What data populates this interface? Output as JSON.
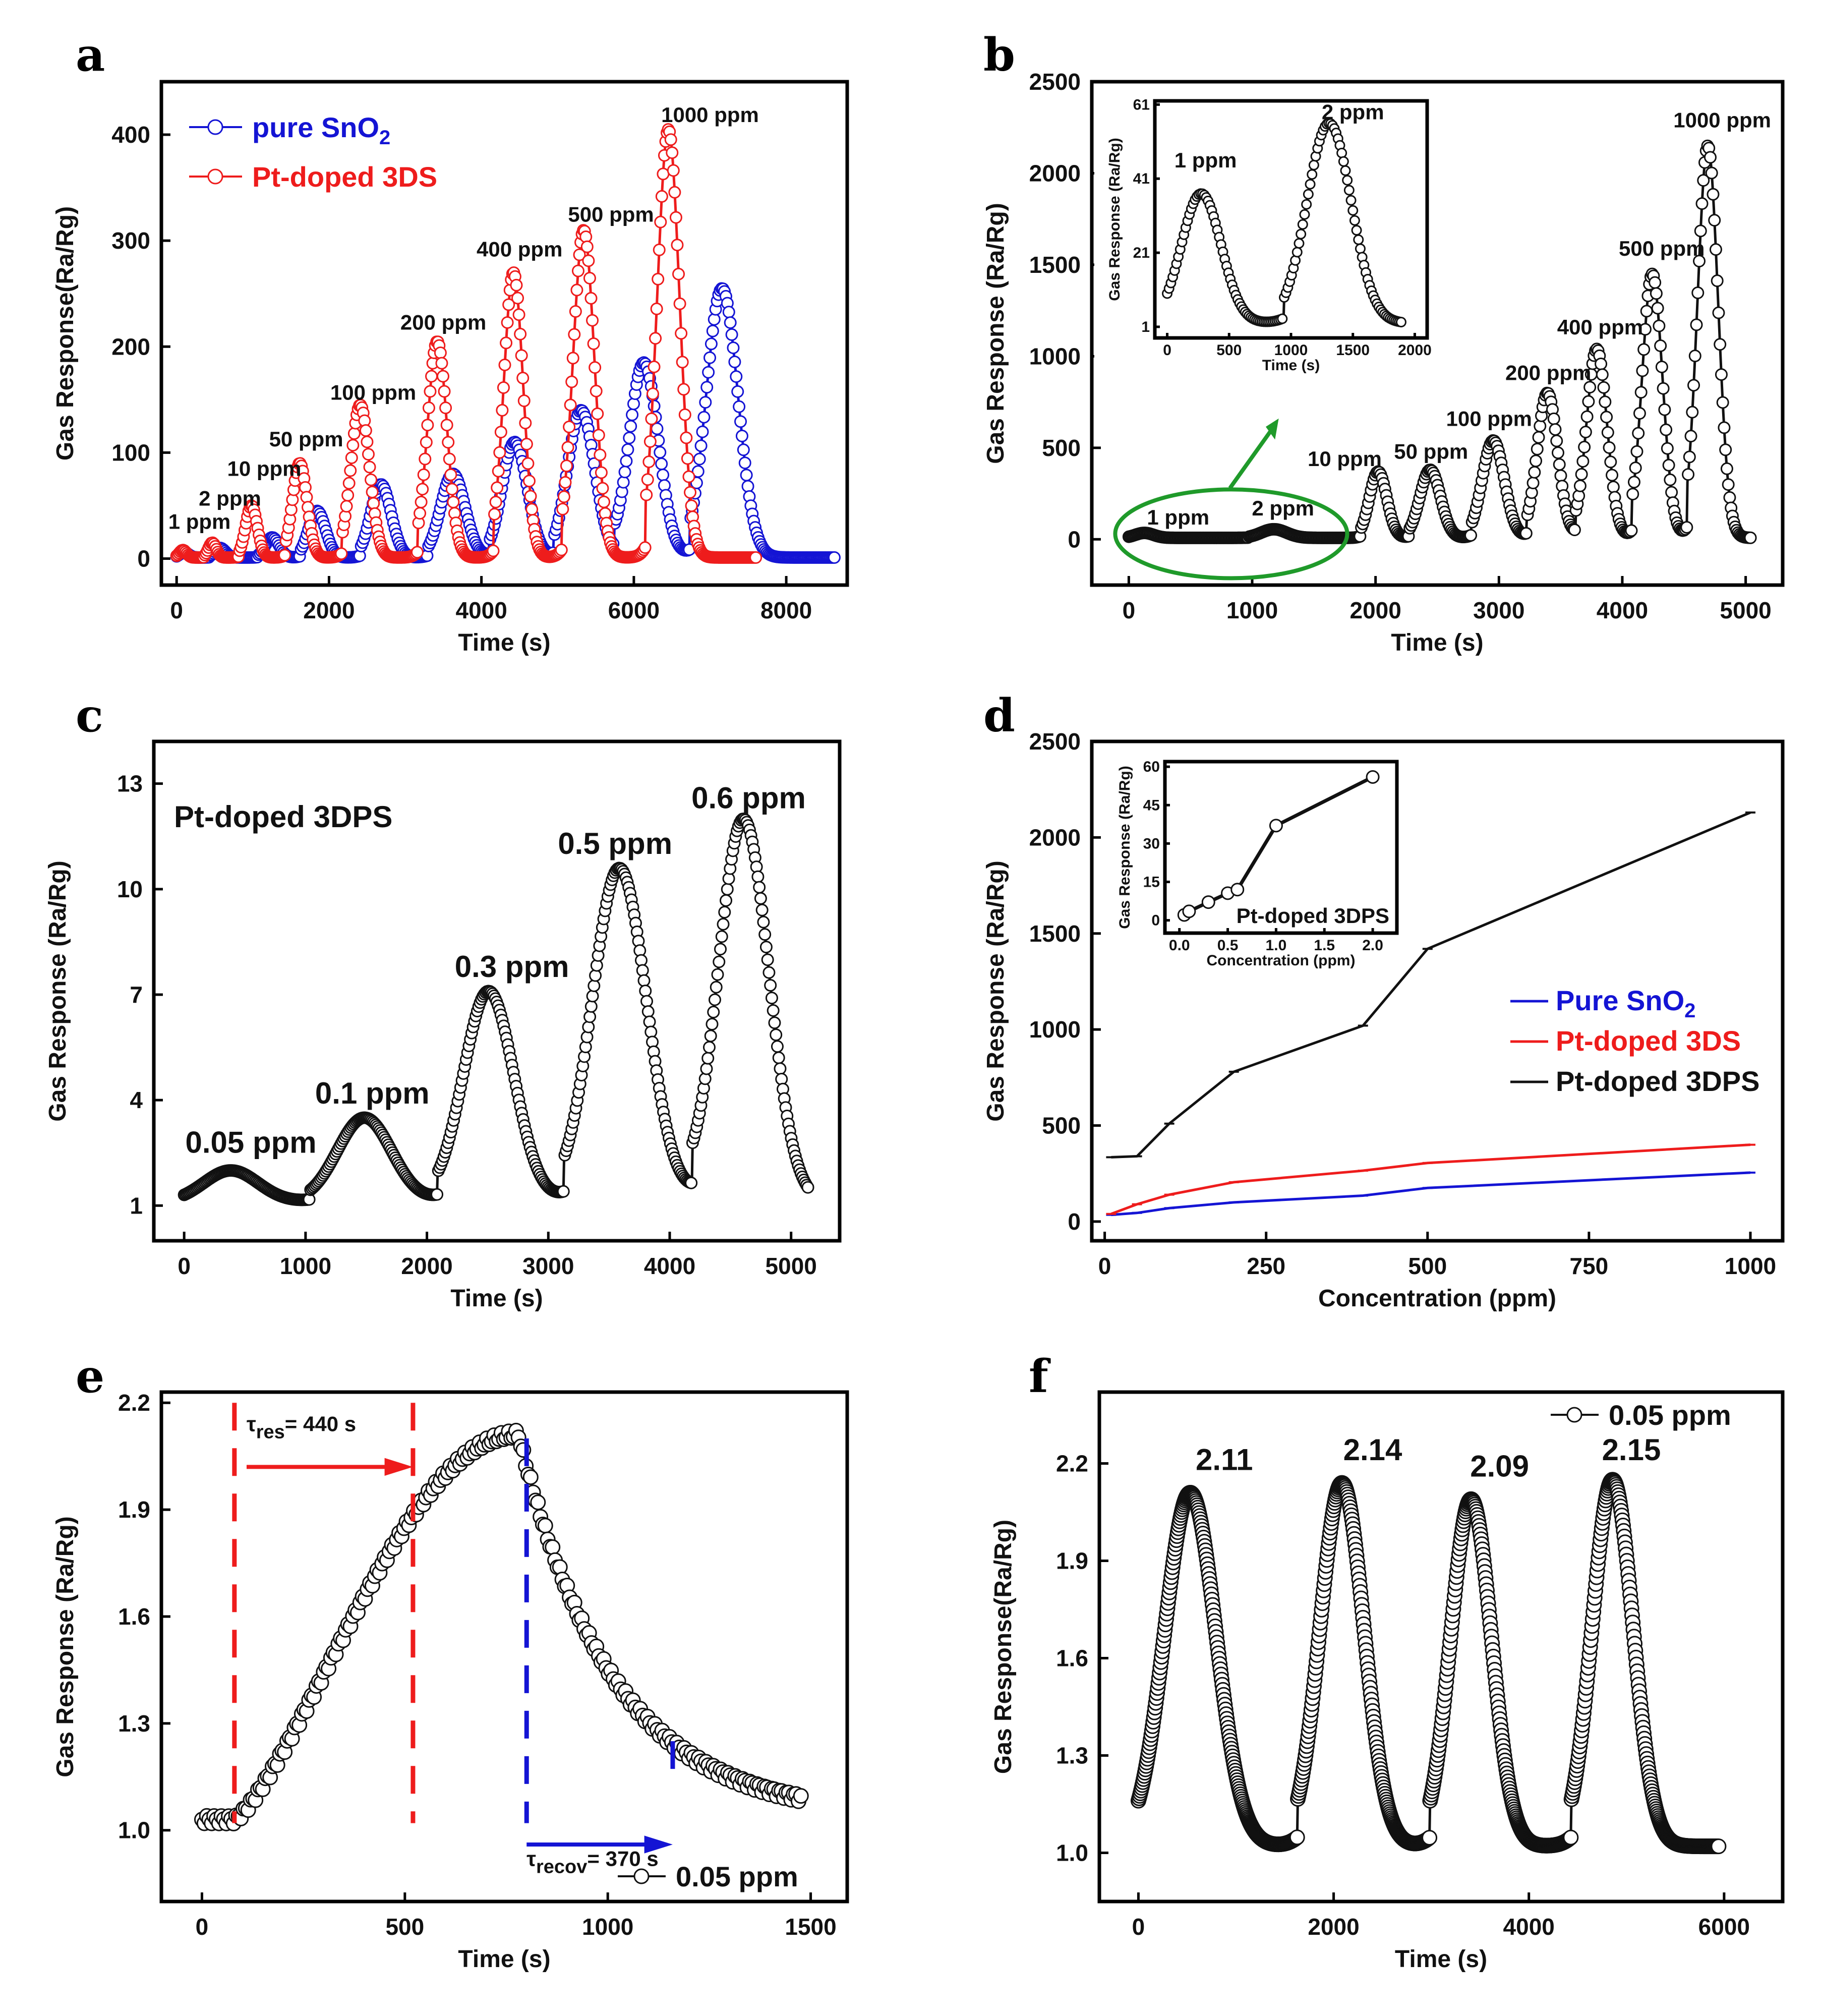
{
  "colors": {
    "blue": "#1414d4",
    "red": "#ee1c1c",
    "black": "#111111",
    "green": "#1f9a2a"
  },
  "panels": [
    {
      "id": "a",
      "letter": "a",
      "xlabel": "Time (s)",
      "ylabel": "Gas Response(Ra/Rg)",
      "xlim": [
        -200,
        8800
      ],
      "ylim": [
        -25,
        450
      ],
      "xticks": [
        0,
        2000,
        4000,
        6000,
        8000
      ],
      "yticks": [
        0,
        100,
        200,
        300,
        400
      ],
      "xtick_labels": [
        "0",
        "2000",
        "4000",
        "6000",
        "8000"
      ],
      "ytick_labels": [
        "0",
        "100",
        "200",
        "300",
        "400"
      ],
      "legend": [
        {
          "label": "pure SnO",
          "sub": "2",
          "color": "blue"
        },
        {
          "label": "Pt-doped 3DS",
          "sub": "",
          "color": "red"
        }
      ],
      "annotations": [
        {
          "text": "1 ppm",
          "x": 300,
          "y": 28
        },
        {
          "text": "2 ppm",
          "x": 700,
          "y": 50
        },
        {
          "text": "10 ppm",
          "x": 1150,
          "y": 78
        },
        {
          "text": "50 ppm",
          "x": 1700,
          "y": 106
        },
        {
          "text": "100 ppm",
          "x": 2580,
          "y": 150
        },
        {
          "text": "200 ppm",
          "x": 3500,
          "y": 216
        },
        {
          "text": "400 ppm",
          "x": 4500,
          "y": 285
        },
        {
          "text": "500 ppm",
          "x": 5700,
          "y": 318
        },
        {
          "text": "1000 ppm",
          "x": 7000,
          "y": 412
        }
      ]
    },
    {
      "id": "b",
      "letter": "b",
      "xlabel": "Time (s)",
      "ylabel": "Gas Response (Ra/Rg)",
      "xlim": [
        -300,
        5300
      ],
      "ylim": [
        -250,
        2500
      ],
      "xticks": [
        0,
        1000,
        2000,
        3000,
        4000,
        5000
      ],
      "yticks": [
        0,
        500,
        1000,
        1500,
        2000,
        2500
      ],
      "xtick_labels": [
        "0",
        "1000",
        "2000",
        "3000",
        "4000",
        "5000"
      ],
      "ytick_labels": [
        "0",
        "500",
        "1000",
        "1500",
        "2000",
        "2500"
      ],
      "annotations": [
        {
          "text": "1 ppm",
          "x": 400,
          "y": 80
        },
        {
          "text": "2 ppm",
          "x": 1250,
          "y": 130
        },
        {
          "text": "10 ppm",
          "x": 1750,
          "y": 400
        },
        {
          "text": "50 ppm",
          "x": 2450,
          "y": 440
        },
        {
          "text": "100 ppm",
          "x": 2920,
          "y": 620
        },
        {
          "text": "200 ppm",
          "x": 3400,
          "y": 870
        },
        {
          "text": "400 ppm",
          "x": 3820,
          "y": 1120
        },
        {
          "text": "500 ppm",
          "x": 4320,
          "y": 1550
        },
        {
          "text": "1000 ppm",
          "x": 4810,
          "y": 2250
        }
      ],
      "inset": {
        "xlabel": "Time (s)",
        "ylabel": "Gas Response (Ra/Rg)",
        "xlim": [
          -100,
          2100
        ],
        "ylim": [
          -2,
          62
        ],
        "xticks": [
          0,
          500,
          1000,
          1500,
          2000
        ],
        "yticks": [
          1,
          21,
          41,
          61
        ],
        "xtick_labels": [
          "0",
          "500",
          "1000",
          "1500",
          "2000"
        ],
        "ytick_labels": [
          "1",
          "21",
          "41",
          "61"
        ],
        "annotations": [
          {
            "text": "1 ppm",
            "x": 310,
            "y": 44
          },
          {
            "text": "2 ppm",
            "x": 1500,
            "y": 57
          }
        ]
      }
    },
    {
      "id": "c",
      "letter": "c",
      "xlabel": "Time (s)",
      "ylabel": "Gas Response (Ra/Rg)",
      "xlim": [
        -250,
        5400
      ],
      "ylim": [
        0,
        14.2
      ],
      "xticks": [
        0,
        1000,
        2000,
        3000,
        4000,
        5000
      ],
      "yticks": [
        1,
        4,
        7,
        10,
        13
      ],
      "xtick_labels": [
        "0",
        "1000",
        "2000",
        "3000",
        "4000",
        "5000"
      ],
      "ytick_labels": [
        "1",
        "4",
        "7",
        "10",
        "13"
      ],
      "title": "Pt-doped 3DPS",
      "annotations": [
        {
          "text": "0.05 ppm",
          "x": 550,
          "y": 2.5
        },
        {
          "text": "0.1 ppm",
          "x": 1550,
          "y": 3.9
        },
        {
          "text": "0.3 ppm",
          "x": 2700,
          "y": 7.5
        },
        {
          "text": "0.5 ppm",
          "x": 3550,
          "y": 11.0
        },
        {
          "text": "0.6 ppm",
          "x": 4650,
          "y": 12.3
        }
      ]
    },
    {
      "id": "d",
      "letter": "d",
      "xlabel": "Concentration (ppm)",
      "ylabel": "Gas Response (Ra/Rg)",
      "xlim": [
        -20,
        1050
      ],
      "ylim": [
        -100,
        2500
      ],
      "xticks": [
        0,
        250,
        500,
        750,
        1000
      ],
      "yticks": [
        0,
        500,
        1000,
        1500,
        2000,
        2500
      ],
      "xtick_labels": [
        "0",
        "250",
        "500",
        "750",
        "1000"
      ],
      "ytick_labels": [
        "0",
        "500",
        "1000",
        "1500",
        "2000",
        "2500"
      ],
      "legend": [
        {
          "label": "Pure SnO",
          "sub": "2",
          "color": "blue"
        },
        {
          "label": "Pt-doped 3DS",
          "sub": "",
          "color": "red"
        },
        {
          "label": "Pt-doped 3DPS",
          "sub": "",
          "color": "black"
        }
      ],
      "inset": {
        "xlabel": "Concentration (ppm)",
        "ylabel": "Gas Response (Ra/Rg)",
        "xlim": [
          -0.15,
          2.25
        ],
        "ylim": [
          -5,
          62
        ],
        "xticks": [
          0,
          0.5,
          1.0,
          1.5,
          2.0
        ],
        "yticks": [
          0,
          15,
          30,
          45,
          60
        ],
        "xtick_labels": [
          "0.0",
          "0.5",
          "1.0",
          "1.5",
          "2.0"
        ],
        "ytick_labels": [
          "0",
          "15",
          "30",
          "45",
          "60"
        ],
        "label": "Pt-doped 3DPS"
      }
    },
    {
      "id": "e",
      "letter": "e",
      "xlabel": "Time (s)",
      "ylabel": "Gas Response (Ra/Rg)",
      "xlim": [
        -100,
        1590
      ],
      "ylim": [
        0.8,
        2.23
      ],
      "xticks": [
        0,
        500,
        1000,
        1500
      ],
      "yticks": [
        1.0,
        1.3,
        1.6,
        1.9,
        2.2
      ],
      "xtick_labels": [
        "0",
        "500",
        "1000",
        "1500"
      ],
      "ytick_labels": [
        "1.0",
        "1.3",
        "1.6",
        "1.9",
        "2.2"
      ],
      "tau_res_label": "τ",
      "tau_res_sub": "res",
      "tau_res_value": "= 440 s",
      "tau_recov_label": "τ",
      "tau_recov_sub": "recov",
      "tau_recov_value": "= 370 s",
      "legend": "0.05 ppm"
    },
    {
      "id": "f",
      "letter": "f",
      "xlabel": "Time (s)",
      "ylabel": "Gas Response(Ra/Rg)",
      "xlim": [
        -400,
        6600
      ],
      "ylim": [
        0.85,
        2.42
      ],
      "xticks": [
        0,
        2000,
        4000,
        6000
      ],
      "yticks": [
        1.0,
        1.3,
        1.6,
        1.9,
        2.2
      ],
      "xtick_labels": [
        "0",
        "2000",
        "4000",
        "6000"
      ],
      "ytick_labels": [
        "1.0",
        "1.3",
        "1.6",
        "1.9",
        "2.2"
      ],
      "legend": "0.05 ppm",
      "annotations": [
        {
          "text": "2.11",
          "x": 880,
          "y": 2.18
        },
        {
          "text": "2.14",
          "x": 2400,
          "y": 2.21
        },
        {
          "text": "2.09",
          "x": 3700,
          "y": 2.16
        },
        {
          "text": "2.15",
          "x": 5050,
          "y": 2.21
        }
      ]
    }
  ],
  "chart_data": [
    {
      "panel": "a",
      "type": "line",
      "series": [
        {
          "name": "pure SnO2",
          "color": "blue",
          "pulses": [
            [
              0,
              6,
              180
            ],
            [
              450,
              10,
              220
            ],
            [
              1100,
              20,
              280
            ],
            [
              1650,
              45,
              350
            ],
            [
              2450,
              70,
              420
            ],
            [
              3350,
              80,
              500
            ],
            [
              4150,
              110,
              520
            ],
            [
              5000,
              140,
              560
            ],
            [
              5800,
              185,
              600
            ],
            [
              6800,
              255,
              650
            ]
          ],
          "x_end": 8650
        },
        {
          "name": "Pt-doped 3DS",
          "color": "red",
          "pulses": [
            [
              0,
              8,
              150
            ],
            [
              380,
              15,
              160
            ],
            [
              850,
              50,
              240
            ],
            [
              1450,
              90,
              300
            ],
            [
              2200,
              145,
              380
            ],
            [
              3200,
              205,
              400
            ],
            [
              4200,
              270,
              400
            ],
            [
              5100,
              310,
              440
            ],
            [
              6200,
              405,
              460
            ]
          ],
          "x_end": 7600
        }
      ]
    },
    {
      "panel": "b",
      "type": "line",
      "series": [
        {
          "name": "Pt-doped 3DPS",
          "color": "black",
          "pulses": [
            [
              0,
              35,
              230
            ],
            [
              1000,
              55,
              320
            ],
            [
              1900,
              370,
              220
            ],
            [
              2300,
              380,
              260
            ],
            [
              2800,
              540,
              280
            ],
            [
              3250,
              800,
              260
            ],
            [
              3650,
              1040,
              260
            ],
            [
              4100,
              1450,
              260
            ],
            [
              4550,
              2150,
              260
            ]
          ],
          "x_end": 5050
        }
      ],
      "inset_series": {
        "pulses": [
          [
            0,
            37,
            500
          ],
          [
            1000,
            56,
            560
          ]
        ],
        "x_end": 1900
      }
    },
    {
      "panel": "c",
      "type": "line",
      "series": [
        {
          "name": "Pt-doped 3DPS",
          "color": "black",
          "pulses": [
            [
              0,
              2.0,
              700
            ],
            [
              1100,
              3.5,
              700
            ],
            [
              2150,
              7.1,
              650
            ],
            [
              3200,
              10.6,
              700
            ],
            [
              4250,
              12.0,
              650
            ]
          ],
          "x_end": 5150,
          "baseline": 1.1
        }
      ]
    },
    {
      "panel": "d",
      "type": "line",
      "x": [
        0.05,
        0.1,
        0.3,
        0.5,
        0.6,
        1,
        2,
        10,
        50,
        100,
        200,
        400,
        500,
        1000
      ],
      "series": [
        {
          "name": "Pure SnO2",
          "color": "blue",
          "values": [
            null,
            null,
            null,
            null,
            null,
            null,
            null,
            35,
            45,
            70,
            100,
            135,
            175,
            255
          ]
        },
        {
          "name": "Pt-doped 3DS",
          "color": "red",
          "values": [
            null,
            null,
            null,
            null,
            null,
            null,
            null,
            40,
            90,
            140,
            205,
            265,
            305,
            400
          ]
        },
        {
          "name": "Pt-doped 3DPS",
          "color": "black",
          "values": [
            null,
            null,
            null,
            null,
            null,
            null,
            null,
            335,
            340,
            510,
            780,
            1020,
            1420,
            2130
          ]
        }
      ],
      "inset_series": {
        "x": [
          0.05,
          0.1,
          0.3,
          0.5,
          0.6,
          1.0,
          2.0
        ],
        "values": [
          2.1,
          3.5,
          7.1,
          10.6,
          12.0,
          37,
          56
        ]
      }
    },
    {
      "panel": "e",
      "type": "scatter",
      "series": [
        {
          "name": "0.05 ppm",
          "color": "black",
          "peak": 2.11,
          "t_start": 80,
          "t_peak": 780,
          "t_end": 1480
        }
      ],
      "tau_res": 440,
      "tau_recov": 370
    },
    {
      "panel": "f",
      "type": "line",
      "series": [
        {
          "name": "0.05 ppm",
          "color": "black",
          "pulses": [
            [
              80,
              2.11,
              820
            ],
            [
              1700,
              2.14,
              700
            ],
            [
              3050,
              2.09,
              650
            ],
            [
              4500,
              2.15,
              650
            ]
          ],
          "x_end": 5950,
          "baseline": 1.02
        }
      ]
    }
  ]
}
